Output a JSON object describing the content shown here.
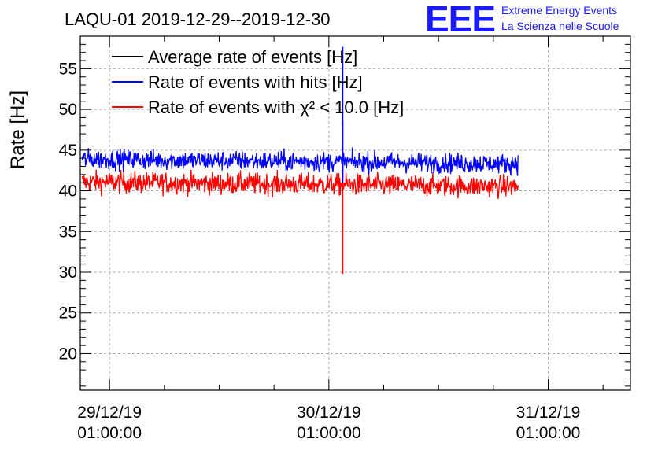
{
  "chart_data": {
    "type": "line",
    "title": "LAQU-01 2019-12-29--2019-12-30",
    "ylabel": "Rate [Hz]",
    "xlabel": "",
    "ylim": [
      15.5,
      59
    ],
    "xlim_hours": [
      -3.2,
      57.0
    ],
    "yticks": [
      20,
      25,
      30,
      35,
      40,
      45,
      50,
      55
    ],
    "ytick_labels": [
      "20",
      "25",
      "30",
      "35",
      "40",
      "45",
      "50",
      "55"
    ],
    "xticks_hours": [
      0,
      24,
      48
    ],
    "xtick_labels": [
      {
        "date": "29/12/19",
        "time": "01:00:00"
      },
      {
        "date": "30/12/19",
        "time": "01:00:00"
      },
      {
        "date": "31/12/19",
        "time": "01:00:00"
      }
    ],
    "grid": true,
    "legend_position": "top-left",
    "data_range_hours": [
      -3.0,
      44.7
    ],
    "series": [
      {
        "name": "Average rate of events [Hz]",
        "color": "#000000",
        "mean": 43.8,
        "spread": 1.1,
        "visible": false
      },
      {
        "name": "Rate of events with hits [Hz]",
        "color": "#0000ff",
        "mean": 43.9,
        "spread": 1.1,
        "spike": {
          "hour": 25.5,
          "low": 41.0,
          "high": 57.7
        }
      },
      {
        "name": "Rate of events with χ² < 10.0 [Hz]",
        "color": "#ff0000",
        "mean": 41.1,
        "spread": 1.2,
        "spike": {
          "hour": 25.5,
          "low": 29.8,
          "high": 48.5
        }
      }
    ]
  },
  "logo": {
    "letters": "EEE",
    "line1": "Extreme Energy Events",
    "line2": "La Scienza nelle Scuole",
    "color": "#1a1aff"
  }
}
